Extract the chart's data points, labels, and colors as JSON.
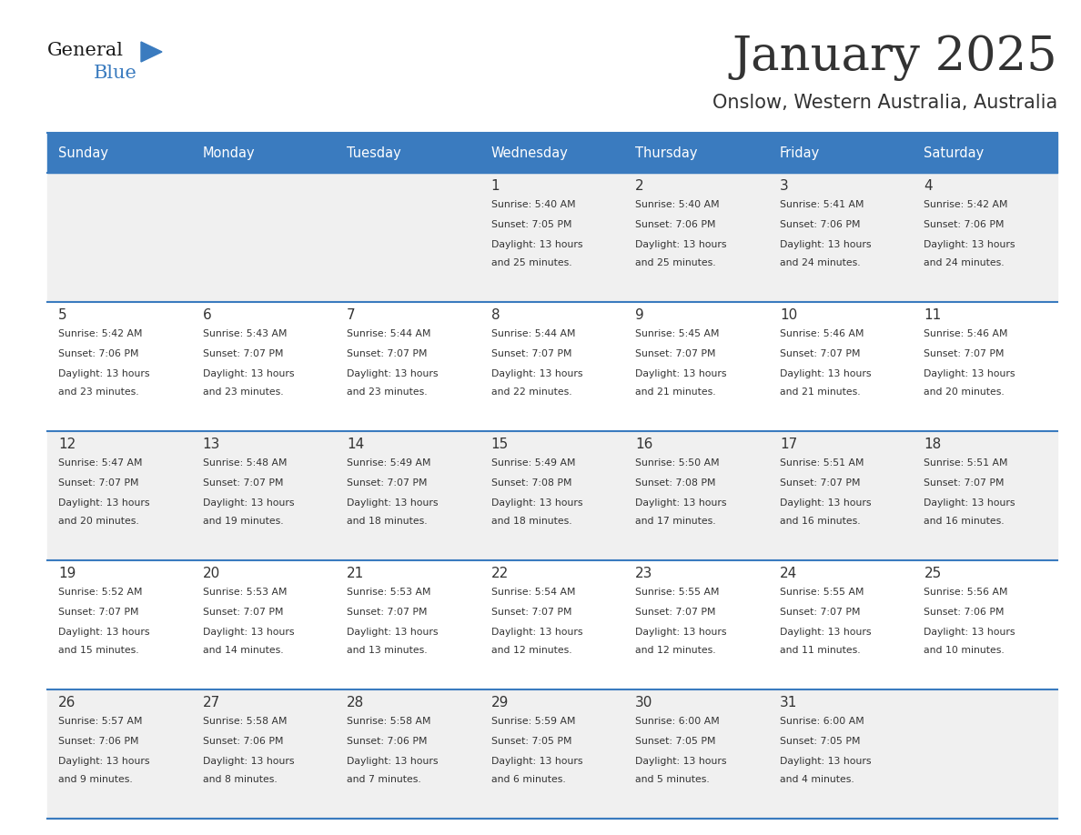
{
  "title": "January 2025",
  "subtitle": "Onslow, Western Australia, Australia",
  "header_bg_color": "#3a7bbf",
  "header_text_color": "#ffffff",
  "row_bg_even": "#f0f0f0",
  "row_bg_odd": "#ffffff",
  "text_color": "#333333",
  "border_color": "#3a7bbf",
  "days_of_week": [
    "Sunday",
    "Monday",
    "Tuesday",
    "Wednesday",
    "Thursday",
    "Friday",
    "Saturday"
  ],
  "calendar_data": [
    [
      {
        "day": "",
        "sunrise": "",
        "sunset": "",
        "daylight_h": "",
        "daylight_m": ""
      },
      {
        "day": "",
        "sunrise": "",
        "sunset": "",
        "daylight_h": "",
        "daylight_m": ""
      },
      {
        "day": "",
        "sunrise": "",
        "sunset": "",
        "daylight_h": "",
        "daylight_m": ""
      },
      {
        "day": "1",
        "sunrise": "5:40 AM",
        "sunset": "7:05 PM",
        "daylight_h": "13",
        "daylight_m": "25"
      },
      {
        "day": "2",
        "sunrise": "5:40 AM",
        "sunset": "7:06 PM",
        "daylight_h": "13",
        "daylight_m": "25"
      },
      {
        "day": "3",
        "sunrise": "5:41 AM",
        "sunset": "7:06 PM",
        "daylight_h": "13",
        "daylight_m": "24"
      },
      {
        "day": "4",
        "sunrise": "5:42 AM",
        "sunset": "7:06 PM",
        "daylight_h": "13",
        "daylight_m": "24"
      }
    ],
    [
      {
        "day": "5",
        "sunrise": "5:42 AM",
        "sunset": "7:06 PM",
        "daylight_h": "13",
        "daylight_m": "23"
      },
      {
        "day": "6",
        "sunrise": "5:43 AM",
        "sunset": "7:07 PM",
        "daylight_h": "13",
        "daylight_m": "23"
      },
      {
        "day": "7",
        "sunrise": "5:44 AM",
        "sunset": "7:07 PM",
        "daylight_h": "13",
        "daylight_m": "23"
      },
      {
        "day": "8",
        "sunrise": "5:44 AM",
        "sunset": "7:07 PM",
        "daylight_h": "13",
        "daylight_m": "22"
      },
      {
        "day": "9",
        "sunrise": "5:45 AM",
        "sunset": "7:07 PM",
        "daylight_h": "13",
        "daylight_m": "21"
      },
      {
        "day": "10",
        "sunrise": "5:46 AM",
        "sunset": "7:07 PM",
        "daylight_h": "13",
        "daylight_m": "21"
      },
      {
        "day": "11",
        "sunrise": "5:46 AM",
        "sunset": "7:07 PM",
        "daylight_h": "13",
        "daylight_m": "20"
      }
    ],
    [
      {
        "day": "12",
        "sunrise": "5:47 AM",
        "sunset": "7:07 PM",
        "daylight_h": "13",
        "daylight_m": "20"
      },
      {
        "day": "13",
        "sunrise": "5:48 AM",
        "sunset": "7:07 PM",
        "daylight_h": "13",
        "daylight_m": "19"
      },
      {
        "day": "14",
        "sunrise": "5:49 AM",
        "sunset": "7:07 PM",
        "daylight_h": "13",
        "daylight_m": "18"
      },
      {
        "day": "15",
        "sunrise": "5:49 AM",
        "sunset": "7:08 PM",
        "daylight_h": "13",
        "daylight_m": "18"
      },
      {
        "day": "16",
        "sunrise": "5:50 AM",
        "sunset": "7:08 PM",
        "daylight_h": "13",
        "daylight_m": "17"
      },
      {
        "day": "17",
        "sunrise": "5:51 AM",
        "sunset": "7:07 PM",
        "daylight_h": "13",
        "daylight_m": "16"
      },
      {
        "day": "18",
        "sunrise": "5:51 AM",
        "sunset": "7:07 PM",
        "daylight_h": "13",
        "daylight_m": "16"
      }
    ],
    [
      {
        "day": "19",
        "sunrise": "5:52 AM",
        "sunset": "7:07 PM",
        "daylight_h": "13",
        "daylight_m": "15"
      },
      {
        "day": "20",
        "sunrise": "5:53 AM",
        "sunset": "7:07 PM",
        "daylight_h": "13",
        "daylight_m": "14"
      },
      {
        "day": "21",
        "sunrise": "5:53 AM",
        "sunset": "7:07 PM",
        "daylight_h": "13",
        "daylight_m": "13"
      },
      {
        "day": "22",
        "sunrise": "5:54 AM",
        "sunset": "7:07 PM",
        "daylight_h": "13",
        "daylight_m": "12"
      },
      {
        "day": "23",
        "sunrise": "5:55 AM",
        "sunset": "7:07 PM",
        "daylight_h": "13",
        "daylight_m": "12"
      },
      {
        "day": "24",
        "sunrise": "5:55 AM",
        "sunset": "7:07 PM",
        "daylight_h": "13",
        "daylight_m": "11"
      },
      {
        "day": "25",
        "sunrise": "5:56 AM",
        "sunset": "7:06 PM",
        "daylight_h": "13",
        "daylight_m": "10"
      }
    ],
    [
      {
        "day": "26",
        "sunrise": "5:57 AM",
        "sunset": "7:06 PM",
        "daylight_h": "13",
        "daylight_m": "9"
      },
      {
        "day": "27",
        "sunrise": "5:58 AM",
        "sunset": "7:06 PM",
        "daylight_h": "13",
        "daylight_m": "8"
      },
      {
        "day": "28",
        "sunrise": "5:58 AM",
        "sunset": "7:06 PM",
        "daylight_h": "13",
        "daylight_m": "7"
      },
      {
        "day": "29",
        "sunrise": "5:59 AM",
        "sunset": "7:05 PM",
        "daylight_h": "13",
        "daylight_m": "6"
      },
      {
        "day": "30",
        "sunrise": "6:00 AM",
        "sunset": "7:05 PM",
        "daylight_h": "13",
        "daylight_m": "5"
      },
      {
        "day": "31",
        "sunrise": "6:00 AM",
        "sunset": "7:05 PM",
        "daylight_h": "13",
        "daylight_m": "4"
      },
      {
        "day": "",
        "sunrise": "",
        "sunset": "",
        "daylight_h": "",
        "daylight_m": ""
      }
    ]
  ],
  "logo_general_color": "#1a1a1a",
  "logo_blue_color": "#3a7bbf",
  "logo_triangle_color": "#3a7bbf"
}
